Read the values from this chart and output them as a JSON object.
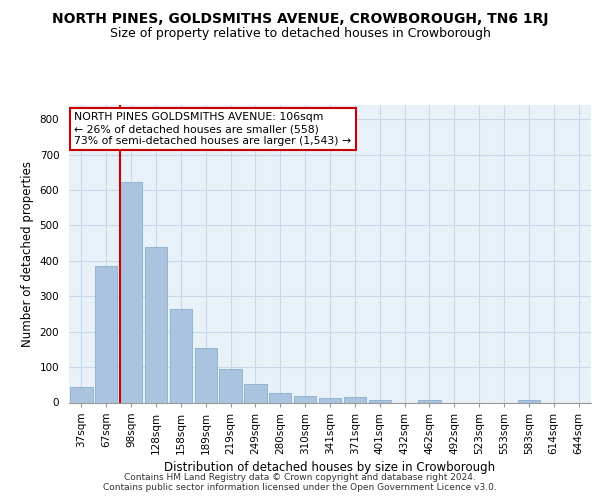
{
  "title": "NORTH PINES, GOLDSMITHS AVENUE, CROWBOROUGH, TN6 1RJ",
  "subtitle": "Size of property relative to detached houses in Crowborough",
  "xlabel": "Distribution of detached houses by size in Crowborough",
  "ylabel": "Number of detached properties",
  "categories": [
    "37sqm",
    "67sqm",
    "98sqm",
    "128sqm",
    "158sqm",
    "189sqm",
    "219sqm",
    "249sqm",
    "280sqm",
    "310sqm",
    "341sqm",
    "371sqm",
    "401sqm",
    "432sqm",
    "462sqm",
    "492sqm",
    "523sqm",
    "553sqm",
    "583sqm",
    "614sqm",
    "644sqm"
  ],
  "values": [
    45,
    385,
    622,
    440,
    265,
    155,
    95,
    52,
    28,
    18,
    12,
    15,
    8,
    0,
    8,
    0,
    0,
    0,
    8,
    0,
    0
  ],
  "bar_color": "#aac4df",
  "bar_edge_color": "#88aece",
  "grid_color": "#c8d8ea",
  "background_color": "#e8f0f8",
  "vline_color": "#cc0000",
  "annotation_text": "NORTH PINES GOLDSMITHS AVENUE: 106sqm\n← 26% of detached houses are smaller (558)\n73% of semi-detached houses are larger (1,543) →",
  "annotation_box_color": "#ffffff",
  "annotation_edge_color": "#cc0000",
  "ylim": [
    0,
    840
  ],
  "yticks": [
    0,
    100,
    200,
    300,
    400,
    500,
    600,
    700,
    800
  ],
  "footer": "Contains HM Land Registry data © Crown copyright and database right 2024.\nContains public sector information licensed under the Open Government Licence v3.0.",
  "title_fontsize": 10,
  "subtitle_fontsize": 9,
  "axis_label_fontsize": 8.5,
  "tick_fontsize": 7.5,
  "annotation_fontsize": 7.8,
  "footer_fontsize": 6.5
}
